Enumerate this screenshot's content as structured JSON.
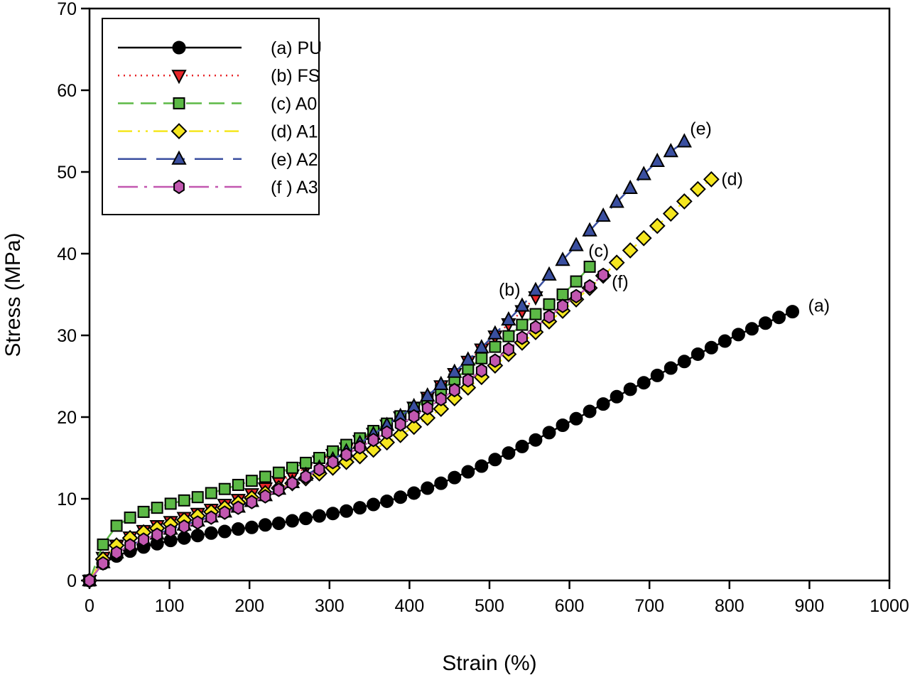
{
  "chart_data": {
    "type": "line",
    "title": "",
    "xlabel": "Strain (%)",
    "ylabel": "Stress (MPa)",
    "xlim": [
      0,
      1000
    ],
    "ylim": [
      0,
      70
    ],
    "xticks": [
      "0",
      "100",
      "200",
      "300",
      "400",
      "500",
      "600",
      "700",
      "800",
      "900",
      "1000"
    ],
    "yticks": [
      "0",
      "10",
      "20",
      "30",
      "40",
      "50",
      "60",
      "70"
    ],
    "grid": false,
    "legend_position": "top-left",
    "series": [
      {
        "name": "(a) PU",
        "annotation": "(a)",
        "color": "#000000",
        "marker": "circle",
        "marker_fill": "#000000",
        "dash": "solid",
        "x": [
          0,
          16.9,
          33.8,
          50.7,
          67.6,
          84.5,
          101.4,
          118.3,
          135.2,
          152.1,
          169,
          185.9,
          202.8,
          219.7,
          236.6,
          253.5,
          270.4,
          287.3,
          304.2,
          321.1,
          338,
          354.9,
          371.8,
          388.7,
          405.6,
          422.5,
          439.4,
          456.3,
          473.2,
          490.1,
          507,
          523.9,
          540.8,
          557.7,
          574.6,
          591.5,
          608.4,
          625.3,
          642.2,
          659.1,
          676,
          692.9,
          709.8,
          726.7,
          743.6,
          760.5,
          777.4,
          794.3,
          811.2,
          828.1,
          845,
          861.9,
          878.8
        ],
        "y": [
          0,
          2.1,
          3.0,
          3.6,
          4.1,
          4.5,
          4.9,
          5.2,
          5.5,
          5.8,
          6.0,
          6.3,
          6.5,
          6.8,
          7.0,
          7.3,
          7.6,
          7.9,
          8.2,
          8.5,
          8.9,
          9.3,
          9.7,
          10.2,
          10.7,
          11.3,
          11.9,
          12.6,
          13.3,
          14.0,
          14.8,
          15.6,
          16.4,
          17.2,
          18.1,
          19.0,
          19.8,
          20.7,
          21.6,
          22.5,
          23.4,
          24.2,
          25.1,
          26.0,
          26.8,
          27.7,
          28.5,
          29.3,
          30.1,
          30.8,
          31.5,
          32.2,
          32.9
        ]
      },
      {
        "name": "(b) FS",
        "annotation": "(b)",
        "color": "#e8262a",
        "marker": "triangle-down",
        "marker_fill": "#e8262a",
        "dash": "dotted",
        "x": [
          0,
          16.9,
          33.8,
          50.7,
          67.6,
          84.5,
          101.4,
          118.3,
          135.2,
          152.1,
          169,
          185.9,
          202.8,
          219.7,
          236.6,
          253.5,
          270.4,
          287.3,
          304.2,
          321.1,
          338,
          354.9,
          371.8,
          388.7,
          405.6,
          422.5,
          439.4,
          456.3,
          473.2,
          490.1,
          507,
          523.9,
          540.8,
          557.7
        ],
        "y": [
          0,
          2.8,
          4.3,
          5.3,
          6.1,
          6.7,
          7.2,
          7.7,
          8.2,
          8.7,
          9.3,
          9.9,
          10.6,
          11.3,
          12.1,
          12.9,
          13.8,
          14.6,
          15.4,
          16.2,
          17.1,
          18.0,
          19.0,
          20.0,
          21.2,
          22.4,
          23.8,
          25.3,
          26.8,
          28.3,
          29.9,
          31.4,
          33.0,
          34.7
        ]
      },
      {
        "name": "(c) A0",
        "annotation": "(c)",
        "color": "#5cb946",
        "marker": "square",
        "marker_fill": "#5cb946",
        "dash": "dashed",
        "x": [
          0,
          16.9,
          33.8,
          50.7,
          67.6,
          84.5,
          101.4,
          118.3,
          135.2,
          152.1,
          169,
          185.9,
          202.8,
          219.7,
          236.6,
          253.5,
          270.4,
          287.3,
          304.2,
          321.1,
          338,
          354.9,
          371.8,
          388.7,
          405.6,
          422.5,
          439.4,
          456.3,
          473.2,
          490.1,
          507,
          523.9,
          540.8,
          557.7,
          574.6,
          591.5,
          608.4,
          625.3
        ],
        "y": [
          0,
          4.4,
          6.7,
          7.7,
          8.4,
          8.9,
          9.4,
          9.8,
          10.2,
          10.7,
          11.2,
          11.7,
          12.2,
          12.7,
          13.2,
          13.8,
          14.4,
          15.0,
          15.8,
          16.6,
          17.4,
          18.3,
          19.2,
          20.1,
          21.1,
          22.1,
          23.3,
          24.6,
          25.9,
          27.2,
          28.6,
          29.9,
          31.3,
          32.6,
          33.8,
          35.0,
          36.6,
          38.4
        ]
      },
      {
        "name": "(d) A1",
        "annotation": "(d)",
        "color": "#f5e61f",
        "marker": "diamond",
        "marker_fill": "#f5e61f",
        "dash": "dash-dot-dot",
        "x": [
          0,
          16.9,
          33.8,
          50.7,
          67.6,
          84.5,
          101.4,
          118.3,
          135.2,
          152.1,
          169,
          185.9,
          202.8,
          219.7,
          236.6,
          253.5,
          270.4,
          287.3,
          304.2,
          321.1,
          338,
          354.9,
          371.8,
          388.7,
          405.6,
          422.5,
          439.4,
          456.3,
          473.2,
          490.1,
          507,
          523.9,
          540.8,
          557.7,
          574.6,
          591.5,
          608.4,
          625.3,
          642.2,
          659.1,
          676,
          692.9,
          709.8,
          726.7,
          743.6,
          760.5,
          777.4
        ],
        "y": [
          0,
          2.6,
          4.3,
          5.2,
          5.9,
          6.4,
          6.9,
          7.4,
          7.9,
          8.4,
          8.9,
          9.5,
          10.1,
          10.7,
          11.3,
          11.9,
          12.5,
          13.1,
          13.8,
          14.5,
          15.2,
          16.0,
          16.9,
          17.8,
          18.8,
          19.9,
          21.0,
          22.3,
          23.6,
          24.9,
          26.3,
          27.7,
          29.1,
          30.4,
          31.7,
          33.0,
          34.4,
          35.8,
          37.3,
          38.9,
          40.4,
          41.9,
          43.4,
          44.9,
          46.4,
          47.9,
          49.1
        ]
      },
      {
        "name": "(e) A2",
        "annotation": "(e)",
        "color": "#3a4fa0",
        "marker": "triangle-up",
        "marker_fill": "#3a4fa0",
        "dash": "long-dash",
        "x": [
          0,
          16.9,
          33.8,
          50.7,
          67.6,
          84.5,
          101.4,
          118.3,
          135.2,
          152.1,
          169,
          185.9,
          202.8,
          219.7,
          236.6,
          253.5,
          270.4,
          287.3,
          304.2,
          321.1,
          338,
          354.9,
          371.8,
          388.7,
          405.6,
          422.5,
          439.4,
          456.3,
          473.2,
          490.1,
          507,
          523.9,
          540.8,
          557.7,
          574.6,
          591.5,
          608.4,
          625.3,
          642.2,
          659.1,
          676,
          692.9,
          709.8,
          726.7,
          743.6
        ],
        "y": [
          0,
          2.2,
          3.4,
          4.3,
          5.0,
          5.7,
          6.3,
          6.8,
          7.3,
          7.8,
          8.4,
          9.0,
          9.7,
          10.4,
          11.2,
          12.0,
          12.9,
          13.8,
          14.8,
          15.8,
          16.8,
          17.9,
          19.0,
          20.1,
          21.3,
          22.6,
          24.0,
          25.5,
          27.0,
          28.5,
          30.2,
          31.9,
          33.6,
          35.5,
          37.4,
          39.2,
          41.0,
          42.8,
          44.6,
          46.3,
          48.0,
          49.7,
          51.3,
          52.5,
          53.7
        ]
      },
      {
        "name": "(f ) A3",
        "annotation": "(f)",
        "color": "#c257b0",
        "marker": "hexagon",
        "marker_fill": "#c257b0",
        "dash": "dash-dot",
        "x": [
          0,
          16.9,
          33.8,
          50.7,
          67.6,
          84.5,
          101.4,
          118.3,
          135.2,
          152.1,
          169,
          185.9,
          202.8,
          219.7,
          236.6,
          253.5,
          270.4,
          287.3,
          304.2,
          321.1,
          338,
          354.9,
          371.8,
          388.7,
          405.6,
          422.5,
          439.4,
          456.3,
          473.2,
          490.1,
          507,
          523.9,
          540.8,
          557.7,
          574.6,
          591.5,
          608.4,
          625.3,
          642.2
        ],
        "y": [
          0,
          2.1,
          3.4,
          4.3,
          5.0,
          5.6,
          6.1,
          6.6,
          7.1,
          7.7,
          8.3,
          8.9,
          9.6,
          10.3,
          11.1,
          11.9,
          12.7,
          13.6,
          14.5,
          15.4,
          16.3,
          17.2,
          18.1,
          19.1,
          20.1,
          21.1,
          22.2,
          23.3,
          24.5,
          25.7,
          26.9,
          28.3,
          29.7,
          31.0,
          32.3,
          33.6,
          34.8,
          36.0,
          37.4
        ]
      }
    ]
  }
}
